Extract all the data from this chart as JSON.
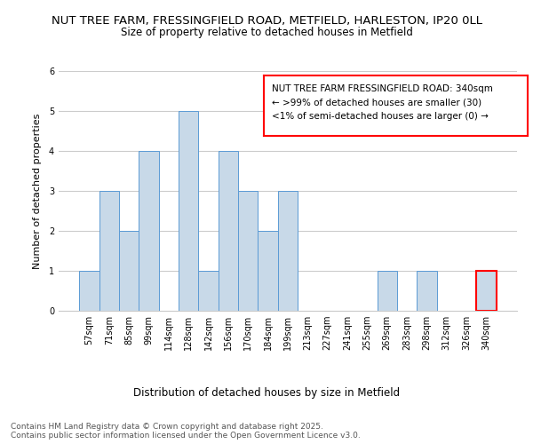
{
  "title1": "NUT TREE FARM, FRESSINGFIELD ROAD, METFIELD, HARLESTON, IP20 0LL",
  "title2": "Size of property relative to detached houses in Metfield",
  "xlabel": "Distribution of detached houses by size in Metfield",
  "ylabel": "Number of detached properties",
  "categories": [
    "57sqm",
    "71sqm",
    "85sqm",
    "99sqm",
    "114sqm",
    "128sqm",
    "142sqm",
    "156sqm",
    "170sqm",
    "184sqm",
    "199sqm",
    "213sqm",
    "227sqm",
    "241sqm",
    "255sqm",
    "269sqm",
    "283sqm",
    "298sqm",
    "312sqm",
    "326sqm",
    "340sqm"
  ],
  "values": [
    1,
    3,
    2,
    4,
    0,
    5,
    1,
    4,
    3,
    2,
    3,
    0,
    0,
    0,
    0,
    1,
    0,
    1,
    0,
    0,
    1
  ],
  "bar_color": "#c8d9e8",
  "bar_edge_color": "#5b9bd5",
  "highlight_index": 20,
  "highlight_bar_edge_color": "#ff0000",
  "annotation_box_text": "NUT TREE FARM FRESSINGFIELD ROAD: 340sqm\n← >99% of detached houses are smaller (30)\n<1% of semi-detached houses are larger (0) →",
  "annotation_box_color": "#ffffff",
  "annotation_box_edge_color": "#ff0000",
  "ylim": [
    0,
    6
  ],
  "yticks": [
    0,
    1,
    2,
    3,
    4,
    5,
    6
  ],
  "background_color": "#ffffff",
  "grid_color": "#cccccc",
  "footer_text": "Contains HM Land Registry data © Crown copyright and database right 2025.\nContains public sector information licensed under the Open Government Licence v3.0.",
  "title1_fontsize": 9.5,
  "title2_fontsize": 8.5,
  "xlabel_fontsize": 8.5,
  "ylabel_fontsize": 8,
  "tick_fontsize": 7,
  "annotation_fontsize": 7.5,
  "footer_fontsize": 6.5
}
